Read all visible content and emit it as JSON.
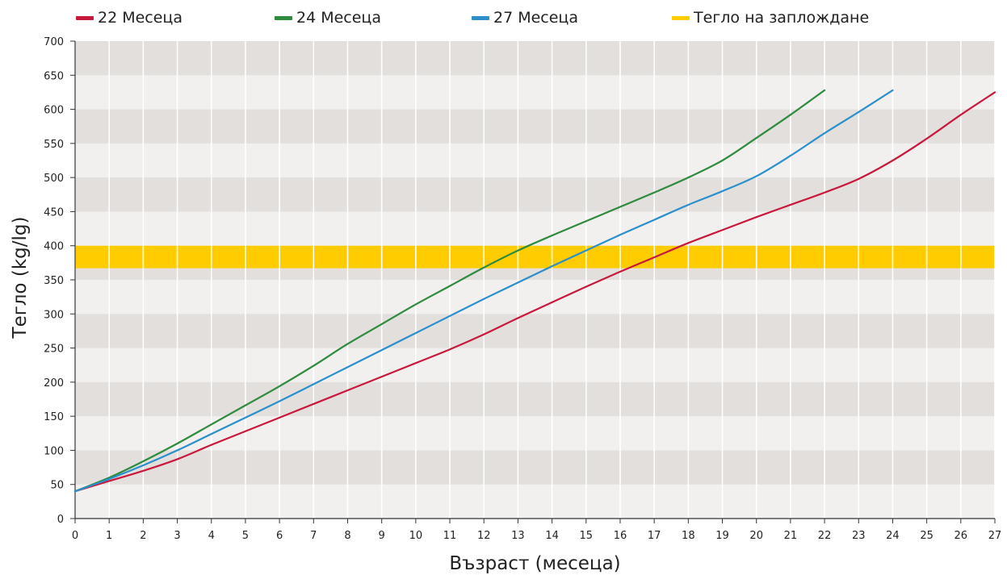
{
  "chart_data": {
    "type": "line",
    "title": "",
    "xlabel": "Възраст (месеца)",
    "ylabel": "Тегло (kg/lg)",
    "xlim": [
      0,
      27
    ],
    "ylim": [
      0,
      700
    ],
    "x_ticks": [
      "0",
      "1",
      "2",
      "3",
      "4",
      "5",
      "6",
      "7",
      "8",
      "9",
      "10",
      "11",
      "12",
      "13",
      "14",
      "15",
      "16",
      "17",
      "18",
      "19",
      "20",
      "21",
      "22",
      "23",
      "24",
      "25",
      "26",
      "27"
    ],
    "y_ticks": [
      "0",
      "50",
      "100",
      "150",
      "200",
      "250",
      "300",
      "350",
      "400",
      "450",
      "500",
      "550",
      "600",
      "650",
      "700"
    ],
    "grid": "alternating horizontal bands, vertical lines at each month",
    "legend_position": "top",
    "band": {
      "name": "Тегло на заплождане",
      "y_range": [
        367,
        400
      ],
      "color": "#FFCC00"
    },
    "series": [
      {
        "name": "22 Месеца",
        "color": "#C8193C",
        "x": [
          0,
          1,
          2,
          3,
          4,
          5,
          6,
          7,
          8,
          9,
          10,
          11,
          12,
          13,
          14,
          15,
          16,
          17,
          18,
          19,
          20,
          21,
          22,
          23,
          24,
          25,
          26,
          27
        ],
        "y": [
          40,
          55,
          70,
          87,
          108,
          128,
          148,
          168,
          188,
          208,
          228,
          248,
          270,
          294,
          317,
          340,
          362,
          383,
          404,
          423,
          442,
          460,
          478,
          498,
          525,
          557,
          592,
          625
        ]
      },
      {
        "name": "24 Месеца",
        "color": "#2E8B3E",
        "x": [
          0,
          1,
          2,
          3,
          4,
          5,
          6,
          7,
          8,
          9,
          10,
          11,
          12,
          13,
          14,
          15,
          16,
          17,
          18,
          19,
          20,
          21,
          22
        ],
        "y": [
          40,
          60,
          84,
          110,
          138,
          166,
          194,
          224,
          256,
          285,
          314,
          341,
          368,
          393,
          415,
          436,
          457,
          478,
          500,
          525,
          558,
          592,
          628
        ]
      },
      {
        "name": "27 Месеца",
        "color": "#2A8FCB",
        "x": [
          0,
          1,
          2,
          3,
          4,
          5,
          6,
          7,
          8,
          9,
          10,
          11,
          12,
          13,
          14,
          15,
          16,
          17,
          18,
          19,
          20,
          21,
          22,
          23,
          24
        ],
        "y": [
          40,
          58,
          78,
          100,
          124,
          148,
          172,
          197,
          222,
          247,
          272,
          297,
          322,
          346,
          370,
          393,
          416,
          438,
          460,
          480,
          502,
          532,
          565,
          596,
          628
        ]
      }
    ]
  },
  "legend": {
    "items": [
      {
        "label": "22 Месеца",
        "color": "#C8193C"
      },
      {
        "label": "24 Месеца",
        "color": "#2E8B3E"
      },
      {
        "label": "27 Месеца",
        "color": "#2A8FCB"
      },
      {
        "label": "Тегло на заплождане",
        "color": "#FFCC00"
      }
    ]
  }
}
